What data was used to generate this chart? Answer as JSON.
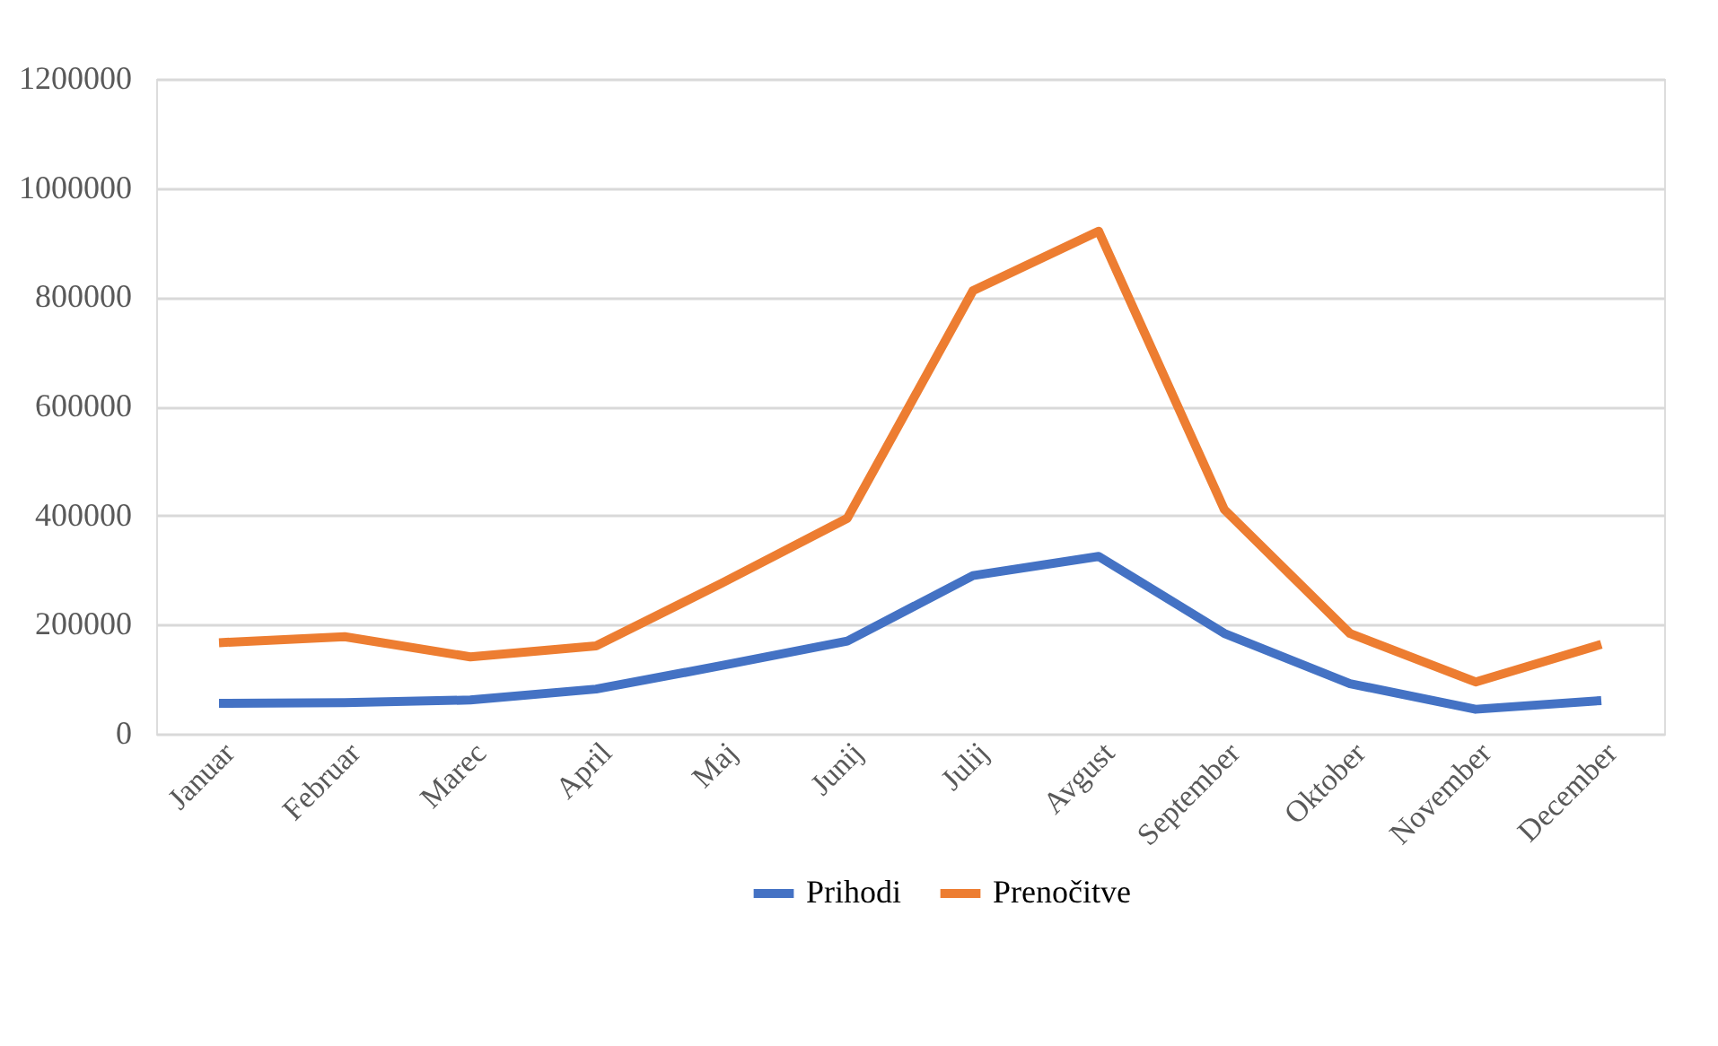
{
  "chart_data": {
    "type": "line",
    "categories": [
      "Januar",
      "Februar",
      "Marec",
      "April",
      "Maj",
      "Junij",
      "Julij",
      "Avgust",
      "September",
      "Oktober",
      "November",
      "December"
    ],
    "series": [
      {
        "name": "Prihodi",
        "color": "#4472c4",
        "values": [
          56000,
          57000,
          62000,
          82000,
          125000,
          170000,
          290000,
          325000,
          184000,
          92000,
          45000,
          61000
        ]
      },
      {
        "name": "Prenočitve",
        "color": "#ed7d31",
        "values": [
          167000,
          178000,
          141000,
          161000,
          276000,
          395000,
          812000,
          921000,
          411000,
          184000,
          95000,
          164000
        ]
      }
    ],
    "ylim": [
      0,
      1200000
    ],
    "yticks": [
      0,
      200000,
      400000,
      600000,
      800000,
      1000000,
      1200000
    ],
    "grid": "y",
    "legend": "bottom",
    "marker": "none",
    "line_style": "solid"
  }
}
